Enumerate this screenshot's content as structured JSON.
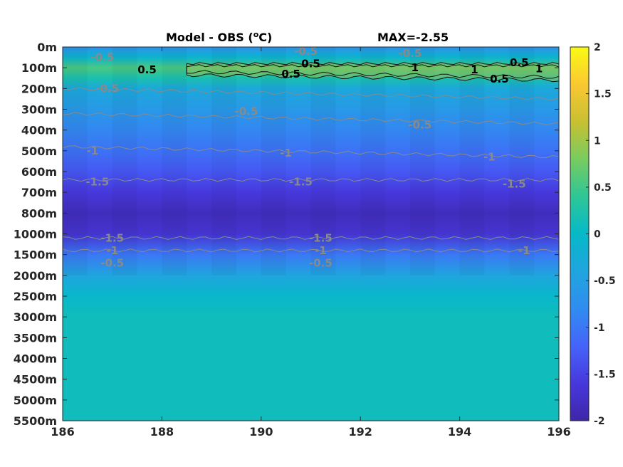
{
  "chart_data": {
    "type": "heatmap",
    "title": "Model - OBS (",
    "title_unit_sup": "o",
    "title_unit_tail": "C)",
    "annotation": "MAX=-2.55",
    "x_ticks": [
      186,
      188,
      190,
      192,
      194,
      196
    ],
    "x_range": [
      186,
      196
    ],
    "y_tick_labels": [
      "0m",
      "100m",
      "200m",
      "300m",
      "400m",
      "500m",
      "600m",
      "700m",
      "800m",
      "1000m",
      "1500m",
      "2000m",
      "2500m",
      "3000m",
      "3500m",
      "4000m",
      "4500m",
      "5000m",
      "5500m"
    ],
    "colorbar": {
      "range": [
        -2,
        2
      ],
      "ticks": [
        2,
        1.5,
        1,
        0.5,
        0,
        -0.5,
        -1,
        -1.5,
        -2
      ],
      "tick_labels": [
        "2",
        "1.5",
        "1",
        "0.5",
        "0",
        "-0.5",
        "-1",
        "-1.5",
        "-2"
      ],
      "colormap": "parula"
    },
    "depth_profile": [
      {
        "level": 0.0,
        "value": -0.7
      },
      {
        "level": 0.5,
        "value": -0.1
      },
      {
        "level": 1.0,
        "value": 0.55
      },
      {
        "level": 1.5,
        "value": 0.2
      },
      {
        "level": 2.0,
        "value": -0.35
      },
      {
        "level": 3.0,
        "value": -0.6
      },
      {
        "level": 4.0,
        "value": -0.85
      },
      {
        "level": 5.0,
        "value": -1.05
      },
      {
        "level": 6.0,
        "value": -1.3
      },
      {
        "level": 7.0,
        "value": -1.6
      },
      {
        "level": 8.0,
        "value": -1.85
      },
      {
        "level": 9.0,
        "value": -1.7
      },
      {
        "level": 10.0,
        "value": -1.0
      },
      {
        "level": 11.0,
        "value": -0.4
      },
      {
        "level": 12.0,
        "value": -0.05
      },
      {
        "level": 13.0,
        "value": 0.1
      },
      {
        "level": 18.0,
        "value": 0.1
      }
    ],
    "contour_labels": [
      {
        "text": "-0.5",
        "x": 186.8,
        "level": 0.5,
        "color": "gray"
      },
      {
        "text": "-0.5",
        "x": 190.9,
        "level": 0.2,
        "color": "gray"
      },
      {
        "text": "-0.5",
        "x": 193.0,
        "level": 0.3,
        "color": "gray"
      },
      {
        "text": "0.5",
        "x": 187.7,
        "level": 1.1,
        "color": "black"
      },
      {
        "text": "0.5",
        "x": 191.0,
        "level": 0.8,
        "color": "black"
      },
      {
        "text": "0.5",
        "x": 190.6,
        "level": 1.3,
        "color": "black"
      },
      {
        "text": "1",
        "x": 193.1,
        "level": 1.0,
        "color": "black"
      },
      {
        "text": "1",
        "x": 194.3,
        "level": 1.1,
        "color": "black"
      },
      {
        "text": "0.5",
        "x": 195.2,
        "level": 0.75,
        "color": "black"
      },
      {
        "text": "1",
        "x": 195.6,
        "level": 1.05,
        "color": "black"
      },
      {
        "text": "0.5",
        "x": 194.8,
        "level": 1.55,
        "color": "black"
      },
      {
        "text": "-0.5",
        "x": 186.9,
        "level": 2.0,
        "color": "gray"
      },
      {
        "text": "-0.5",
        "x": 189.7,
        "level": 3.1,
        "color": "gray"
      },
      {
        "text": "-0.5",
        "x": 193.2,
        "level": 3.75,
        "color": "gray"
      },
      {
        "text": "-1",
        "x": 186.6,
        "level": 5.0,
        "color": "gray"
      },
      {
        "text": "-1",
        "x": 190.5,
        "level": 5.1,
        "color": "gray"
      },
      {
        "text": "-1",
        "x": 194.6,
        "level": 5.3,
        "color": "gray"
      },
      {
        "text": "-1.5",
        "x": 186.7,
        "level": 6.5,
        "color": "gray"
      },
      {
        "text": "-1.5",
        "x": 190.8,
        "level": 6.5,
        "color": "gray"
      },
      {
        "text": "-1.5",
        "x": 195.1,
        "level": 6.6,
        "color": "gray"
      },
      {
        "text": "-1.5",
        "x": 187.0,
        "level": 9.2,
        "color": "gray"
      },
      {
        "text": "-1.5",
        "x": 191.2,
        "level": 9.2,
        "color": "gray"
      },
      {
        "text": "-1",
        "x": 187.0,
        "level": 9.8,
        "color": "gray"
      },
      {
        "text": "-1",
        "x": 191.2,
        "level": 9.8,
        "color": "gray"
      },
      {
        "text": "-1",
        "x": 195.3,
        "level": 9.8,
        "color": "gray"
      },
      {
        "text": "-0.5",
        "x": 187.0,
        "level": 10.4,
        "color": "gray"
      },
      {
        "text": "-0.5",
        "x": 191.2,
        "level": 10.4,
        "color": "gray"
      }
    ]
  }
}
